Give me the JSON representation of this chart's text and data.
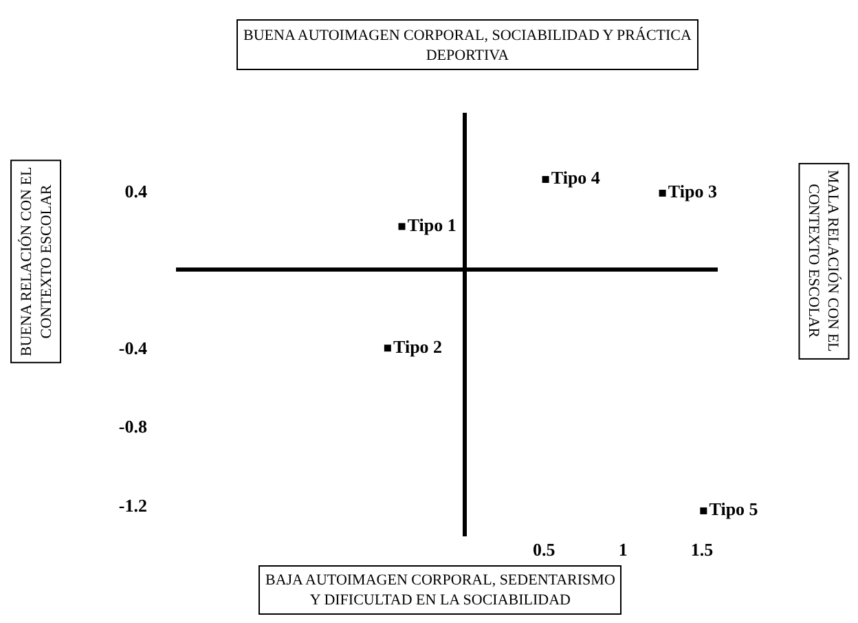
{
  "chart_data": {
    "type": "scatter",
    "marker": "square",
    "legend": false,
    "xlim": [
      -1.83,
      1.6
    ],
    "ylim": [
      -1.36,
      0.8
    ],
    "xticks": [
      0.5,
      1,
      1.5
    ],
    "yticks": [
      0.4,
      -0.4,
      -0.8,
      -1.2
    ],
    "series": [
      {
        "name": "Tipo 1",
        "color": "#000000",
        "x": [
          -0.4
        ],
        "values": [
          0.22
        ]
      },
      {
        "name": "Tipo 2",
        "color": "#000000",
        "x": [
          -0.49
        ],
        "values": [
          -0.4
        ]
      },
      {
        "name": "Tipo 3",
        "color": "#000000",
        "x": [
          1.25
        ],
        "values": [
          0.39
        ]
      },
      {
        "name": "Tipo 4",
        "color": "#000000",
        "x": [
          0.51
        ],
        "values": [
          0.46
        ]
      },
      {
        "name": "Tipo 5",
        "color": "#000000",
        "x": [
          1.51
        ],
        "values": [
          -1.23
        ]
      }
    ],
    "annotations": [
      "BUENA AUTOIMAGEN CORPORAL, SOCIABILIDAD Y PRÁCTICA\nDEPORTIVA",
      "BAJA AUTOIMAGEN CORPORAL, SEDENTARISMO\nY DIFICULTAD EN LA SOCIABILIDAD",
      "BUENA RELACIÓN CON EL\nCONTEXTO ESCOLAR",
      "MALA RELACIÓN CON EL\nCONTEXTO ESCOLAR"
    ]
  }
}
